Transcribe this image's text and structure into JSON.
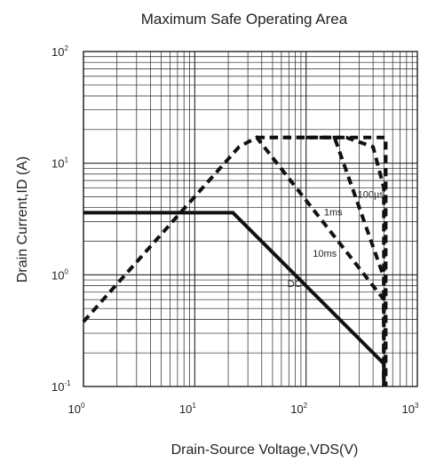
{
  "chart_data": {
    "type": "line",
    "title": "Maximum Safe Operating Area",
    "xlabel": "Drain-Source Voltage,VDS(V)",
    "ylabel": "Drain Current,ID (A)",
    "xscale": "log",
    "yscale": "log",
    "xlim": [
      1,
      1000
    ],
    "ylim": [
      0.1,
      100
    ],
    "grid": true,
    "x_ticks": [
      {
        "base": "10",
        "exp": "0"
      },
      {
        "base": "10",
        "exp": "1"
      },
      {
        "base": "10",
        "exp": "2"
      },
      {
        "base": "10",
        "exp": "3"
      }
    ],
    "y_ticks": [
      {
        "base": "10",
        "exp": "-1"
      },
      {
        "base": "10",
        "exp": "0"
      },
      {
        "base": "10",
        "exp": "1"
      },
      {
        "base": "10",
        "exp": "2"
      }
    ],
    "series": [
      {
        "name": "DC",
        "style": "solid",
        "x": [
          1,
          22,
          500,
          500
        ],
        "y": [
          3.6,
          3.6,
          0.16,
          0.1
        ]
      },
      {
        "name": "10ms",
        "style": "dashed",
        "x": [
          1,
          25,
          36,
          500,
          500
        ],
        "y": [
          0.38,
          14,
          17,
          0.6,
          0.1
        ]
      },
      {
        "name": "1ms",
        "style": "dashed",
        "x": [
          47,
          180,
          500,
          500
        ],
        "y": [
          17,
          17,
          0.95,
          0.1
        ]
      },
      {
        "name": "100µs",
        "style": "dashed",
        "x": [
          100,
          230,
          400,
          500,
          500
        ],
        "y": [
          17,
          17,
          14,
          6,
          0.1
        ]
      },
      {
        "name": "",
        "style": "dashed",
        "x": [
          36,
          520,
          520
        ],
        "y": [
          17,
          17,
          0.1
        ]
      }
    ],
    "annotations": [
      {
        "text": "100µs",
        "x": 290,
        "y": 4.9
      },
      {
        "text": "1ms",
        "x": 145,
        "y": 3.4
      },
      {
        "text": "10ms",
        "x": 115,
        "y": 1.45
      },
      {
        "text": "DC",
        "x": 68,
        "y": 0.78
      }
    ],
    "colors": {
      "line": "#111111",
      "grid": "#222222",
      "text": "#222222"
    }
  }
}
